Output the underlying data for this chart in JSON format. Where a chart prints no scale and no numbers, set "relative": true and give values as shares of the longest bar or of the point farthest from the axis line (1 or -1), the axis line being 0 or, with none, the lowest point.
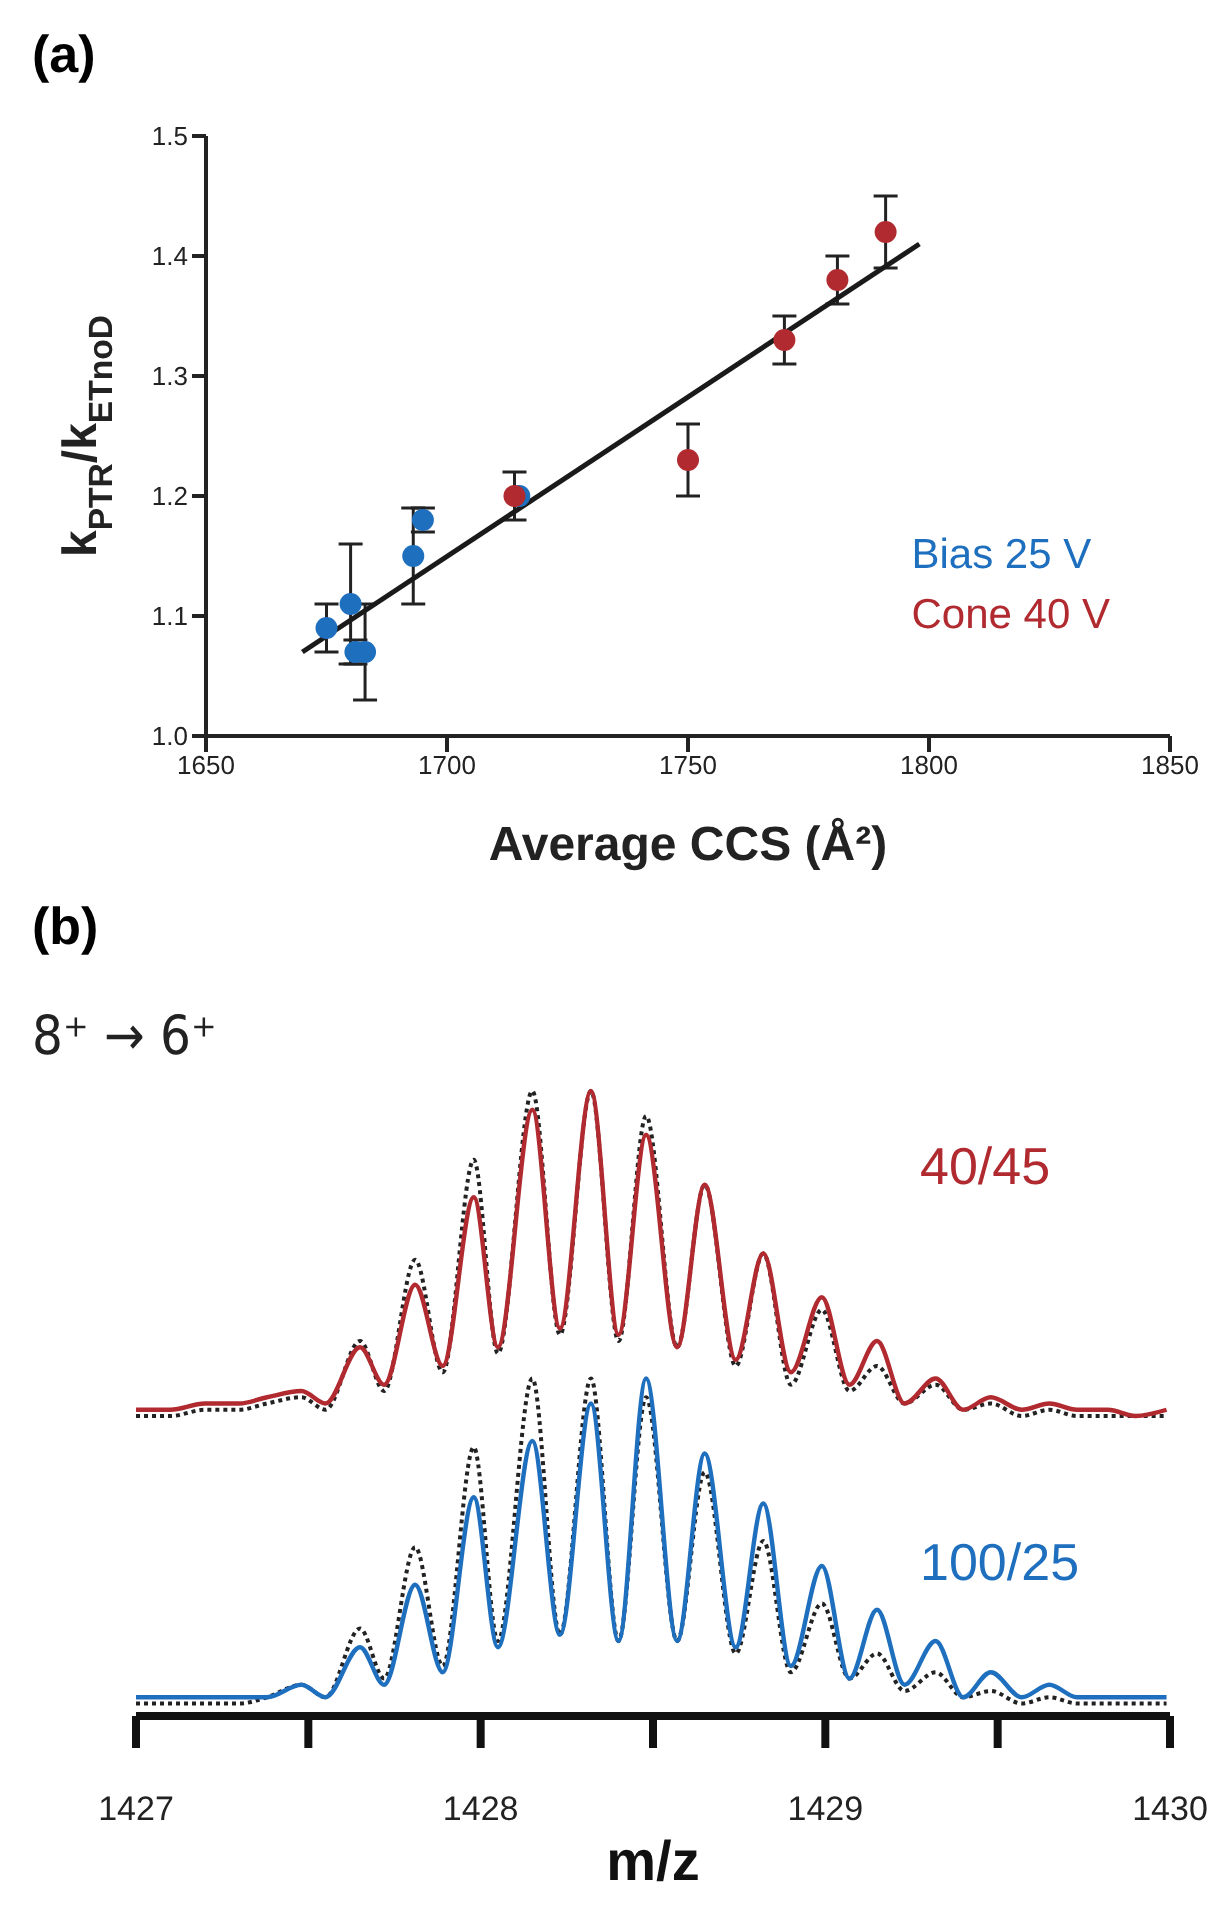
{
  "chart_data": [
    {
      "type": "scatter",
      "title": "(a)",
      "xlabel": "Average CCS (Å²)",
      "ylabel": "k$_{PTR}$/k$_{ETnoD}$",
      "xlim": [
        1650,
        1850
      ],
      "xticks": [
        1650,
        1700,
        1750,
        1800,
        1850
      ],
      "ylim": [
        1.0,
        1.5
      ],
      "yticks": [
        {
          "value": 1.0,
          "label": "1.0"
        },
        1.1,
        1.2,
        1.3,
        1.4,
        1.5
      ],
      "grid": false,
      "legend": "bottom right",
      "series": [
        {
          "name": "Bias 25 V",
          "color": "#1f6fbf",
          "marker": "circle",
          "x": [
            1675,
            1680,
            1681,
            1683,
            1693,
            1695,
            1715
          ],
          "values": [
            1.09,
            1.11,
            1.07,
            1.07,
            1.15,
            1.18,
            1.2
          ],
          "errors": [
            0.02,
            0.05,
            0.01,
            0.04,
            0.04,
            0.01,
            null
          ]
        },
        {
          "name": "Cone 40 V",
          "color": "#b02a30",
          "marker": "circle",
          "x": [
            1714,
            1750,
            1770,
            1781,
            1791
          ],
          "values": [
            1.2,
            1.23,
            1.33,
            1.38,
            1.42
          ],
          "errors": [
            0.02,
            0.03,
            0.02,
            0.02,
            0.03
          ]
        },
        {
          "type": "line",
          "color": "#1a1a1a",
          "marker": "none",
          "x": [
            1670,
            1798
          ],
          "values": [
            1.07,
            1.41
          ]
        }
      ]
    },
    {
      "type": "line",
      "title": "(b)",
      "xlabel": "m/z",
      "relative": true,
      "tick_labels": "x",
      "grid": false,
      "annotations": [
        "8⁺ → 6⁺"
      ],
      "xlim": [
        1427,
        1430
      ],
      "xticks": [
        1427,
        {
          "value": 1427.5,
          "label": null
        },
        1428,
        {
          "value": 1428.5,
          "label": null
        },
        1429,
        {
          "value": 1429.5,
          "label": null
        },
        1430
      ],
      "x": [
        1427.0,
        1427.1,
        1427.2,
        1427.3,
        1427.38,
        1427.48,
        1427.55,
        1427.65,
        1427.72,
        1427.81,
        1427.89,
        1427.98,
        1428.05,
        1428.15,
        1428.23,
        1428.32,
        1428.4,
        1428.48,
        1428.57,
        1428.65,
        1428.74,
        1428.82,
        1428.9,
        1428.99,
        1429.07,
        1429.15,
        1429.23,
        1429.32,
        1429.4,
        1429.48,
        1429.57,
        1429.65,
        1429.73,
        1429.82,
        1429.9,
        1429.99
      ],
      "series": [
        {
          "color": "#222222",
          "line_style": "dotted",
          "values": [
            0.48,
            0.48,
            0.49,
            0.49,
            0.5,
            0.51,
            0.49,
            0.6,
            0.52,
            0.73,
            0.55,
            0.89,
            0.58,
            1.0,
            0.61,
            1.0,
            0.6,
            0.96,
            0.59,
            0.85,
            0.56,
            0.74,
            0.53,
            0.65,
            0.52,
            0.56,
            0.5,
            0.53,
            0.49,
            0.5,
            0.48,
            0.49,
            0.48,
            0.48,
            0.48,
            0.48
          ]
        },
        {
          "name": "40/45",
          "color": "#b02a30",
          "line_style": "solid",
          "values": [
            0.49,
            0.49,
            0.5,
            0.5,
            0.51,
            0.52,
            0.5,
            0.59,
            0.53,
            0.69,
            0.56,
            0.83,
            0.59,
            0.97,
            0.62,
            1.0,
            0.61,
            0.93,
            0.59,
            0.85,
            0.57,
            0.74,
            0.55,
            0.67,
            0.53,
            0.6,
            0.5,
            0.54,
            0.49,
            0.51,
            0.49,
            0.5,
            0.49,
            0.49,
            0.48,
            0.49
          ]
        },
        {
          "color": "#222222",
          "line_style": "dotted",
          "values": [
            0.02,
            0.02,
            0.02,
            0.02,
            0.03,
            0.05,
            0.03,
            0.14,
            0.06,
            0.27,
            0.08,
            0.43,
            0.12,
            0.54,
            0.13,
            0.54,
            0.12,
            0.51,
            0.12,
            0.39,
            0.1,
            0.28,
            0.07,
            0.18,
            0.06,
            0.1,
            0.04,
            0.07,
            0.03,
            0.04,
            0.02,
            0.03,
            0.02,
            0.02,
            0.02,
            0.02
          ]
        },
        {
          "name": "100/25",
          "color": "#1f6fbf",
          "line_style": "solid",
          "values": [
            0.03,
            0.03,
            0.03,
            0.03,
            0.03,
            0.05,
            0.03,
            0.11,
            0.05,
            0.21,
            0.07,
            0.35,
            0.11,
            0.44,
            0.13,
            0.5,
            0.12,
            0.54,
            0.12,
            0.42,
            0.11,
            0.34,
            0.08,
            0.24,
            0.06,
            0.17,
            0.05,
            0.12,
            0.03,
            0.07,
            0.03,
            0.05,
            0.03,
            0.03,
            0.03,
            0.03
          ]
        }
      ]
    }
  ]
}
